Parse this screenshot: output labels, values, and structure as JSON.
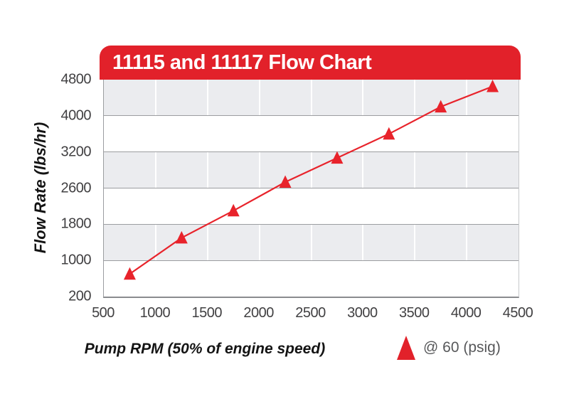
{
  "title_banner": {
    "text": "11115 and 11117 Flow Chart",
    "background": "#e2212a",
    "text_color": "#ffffff"
  },
  "chart_data": {
    "type": "line",
    "title": "11115 and 11117 Flow Chart",
    "xlabel": "Pump RPM (50% of engine speed)",
    "ylabel": "Flow Rate (lbs/hr)",
    "x_ticks": [
      500,
      1000,
      1500,
      2000,
      2500,
      3000,
      3500,
      4000,
      4500
    ],
    "y_ticks": [
      4800,
      4000,
      3200,
      2600,
      1800,
      1000,
      200
    ],
    "xlim": [
      500,
      4500
    ],
    "grid": {
      "horizontal_bands": "alternating gray/white, gray first from top",
      "band_color": "#ebecef",
      "band_line_color": "#9b9da0",
      "vertical_gridline_color": "#ffffff"
    },
    "series": [
      {
        "name": "@ 60 (psig)",
        "marker": "triangle-up",
        "color": "#e8232b",
        "x": [
          750,
          1250,
          1750,
          2250,
          2750,
          3250,
          3750,
          4250
        ],
        "y": [
          700,
          1500,
          2100,
          2700,
          3100,
          3600,
          4200,
          4650
        ]
      }
    ],
    "legend": {
      "label": "@ 60 (psig)",
      "position": "bottom-right-below-axis"
    }
  },
  "colors": {
    "accent_red": "#e2212a",
    "tick_label": "#414042",
    "axis_title": "#141414",
    "legend_text": "#57585a"
  }
}
